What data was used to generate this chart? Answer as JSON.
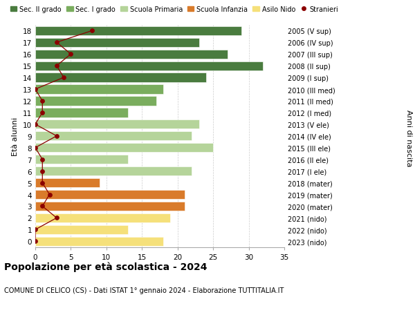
{
  "ages": [
    18,
    17,
    16,
    15,
    14,
    13,
    12,
    11,
    10,
    9,
    8,
    7,
    6,
    5,
    4,
    3,
    2,
    1,
    0
  ],
  "right_labels": [
    "2005 (V sup)",
    "2006 (IV sup)",
    "2007 (III sup)",
    "2008 (II sup)",
    "2009 (I sup)",
    "2010 (III med)",
    "2011 (II med)",
    "2012 (I med)",
    "2013 (V ele)",
    "2014 (IV ele)",
    "2015 (III ele)",
    "2016 (II ele)",
    "2017 (I ele)",
    "2018 (mater)",
    "2019 (mater)",
    "2020 (mater)",
    "2021 (nido)",
    "2022 (nido)",
    "2023 (nido)"
  ],
  "bar_values": [
    29,
    23,
    27,
    32,
    24,
    18,
    17,
    13,
    23,
    22,
    25,
    13,
    22,
    9,
    21,
    21,
    19,
    13,
    18
  ],
  "bar_colors": [
    "#4a7c3f",
    "#4a7c3f",
    "#4a7c3f",
    "#4a7c3f",
    "#4a7c3f",
    "#7aad5e",
    "#7aad5e",
    "#7aad5e",
    "#b5d49a",
    "#b5d49a",
    "#b5d49a",
    "#b5d49a",
    "#b5d49a",
    "#d97b2b",
    "#d97b2b",
    "#d97b2b",
    "#f5e07a",
    "#f5e07a",
    "#f5e07a"
  ],
  "stranieri_values": [
    8,
    3,
    5,
    3,
    4,
    0,
    1,
    1,
    0,
    3,
    0,
    1,
    1,
    1,
    2,
    1,
    3,
    0,
    0
  ],
  "legend_labels": [
    "Sec. II grado",
    "Sec. I grado",
    "Scuola Primaria",
    "Scuola Infanzia",
    "Asilo Nido",
    "Stranieri"
  ],
  "legend_colors": [
    "#4a7c3f",
    "#7aad5e",
    "#b5d49a",
    "#d97b2b",
    "#f5e07a",
    "#8b0000"
  ],
  "title": "Popolazione per età scolastica - 2024",
  "subtitle": "COMUNE DI CELICO (CS) - Dati ISTAT 1° gennaio 2024 - Elaborazione TUTTITALIA.IT",
  "ylabel": "Età alunni",
  "right_ylabel": "Anni di nascita",
  "xlim": [
    0,
    35
  ],
  "xticks": [
    0,
    5,
    10,
    15,
    20,
    25,
    30,
    35
  ],
  "background_color": "#ffffff",
  "grid_color": "#cccccc",
  "bar_height": 0.78
}
